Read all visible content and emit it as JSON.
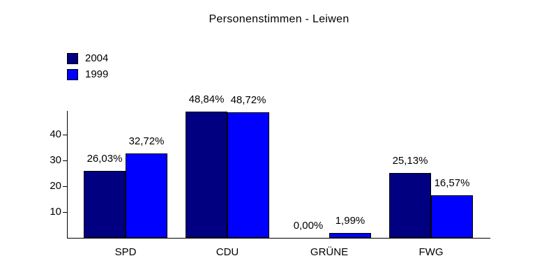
{
  "title": "Personenstimmen - Leiwen",
  "chart_data": {
    "type": "bar",
    "title": "Personenstimmen - Leiwen",
    "categories": [
      "SPD",
      "CDU",
      "GRÜNE",
      "FWG"
    ],
    "series": [
      {
        "name": "2004",
        "color": "#000080",
        "values": [
          26.03,
          48.84,
          0.0,
          25.13
        ],
        "labels": [
          "26,03%",
          "48,84%",
          "0,00%",
          "25,13%"
        ]
      },
      {
        "name": "1999",
        "color": "#0000ff",
        "values": [
          32.72,
          48.72,
          1.99,
          16.57
        ],
        "labels": [
          "32,72%",
          "48,72%",
          "1,99%",
          "16,57%"
        ]
      }
    ],
    "yticks": [
      10,
      20,
      30,
      40
    ],
    "ylim": [
      0,
      49
    ],
    "xlabel": "",
    "ylabel": "",
    "grid": false,
    "legend_position": "top-left",
    "value_label_format": "percent-comma",
    "bar_border_color": "#000000",
    "axis_color": "#000000",
    "text_color": "#000000",
    "background_color": "#ffffff"
  }
}
